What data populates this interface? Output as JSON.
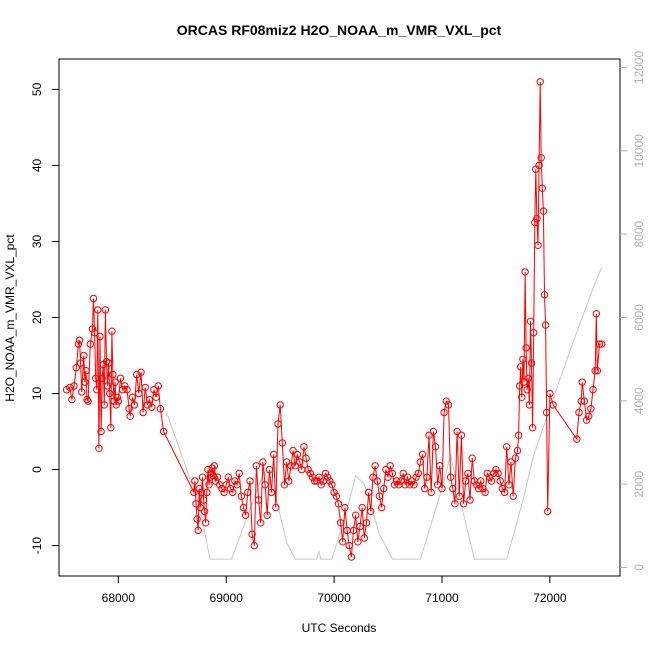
{
  "chart_data": {
    "type": "scatter",
    "title": "ORCAS RF08miz2 H2O_NOAA_m_VMR_VXL_pct",
    "xlabel": "UTC Seconds",
    "ylabel": "H2O_NOAA_m_VMR_VXL_pct",
    "xlim": [
      67450,
      72650
    ],
    "ylim": [
      -14,
      54
    ],
    "x_ticks": [
      68000,
      69000,
      70000,
      71000,
      72000
    ],
    "y_ticks": [
      -10,
      0,
      10,
      20,
      30,
      40,
      50
    ],
    "y2lim": [
      -205,
      12205
    ],
    "y2_ticks": [
      0,
      2000,
      4000,
      6000,
      8000,
      10000,
      12000
    ],
    "colors": {
      "series": "#ff0000",
      "altitude": "#c8c8c8"
    },
    "series": [
      {
        "style": "points+line",
        "color": "#ff0000",
        "points": [
          [
            67520,
            10.5
          ],
          [
            67550,
            10.8
          ],
          [
            67570,
            9.2
          ],
          [
            67590,
            11.0
          ],
          [
            67610,
            13.4
          ],
          [
            67630,
            16.5
          ],
          [
            67640,
            17.0
          ],
          [
            67650,
            14.0
          ],
          [
            67660,
            10.2
          ],
          [
            67680,
            15.0
          ],
          [
            67690,
            11.5
          ],
          [
            67700,
            13.0
          ],
          [
            67710,
            9.2
          ],
          [
            67720,
            9.0
          ],
          [
            67740,
            16.5
          ],
          [
            67760,
            18.5
          ],
          [
            67770,
            22.5
          ],
          [
            67780,
            18.0
          ],
          [
            67790,
            12.0
          ],
          [
            67800,
            10.5
          ],
          [
            67810,
            21.0
          ],
          [
            67820,
            2.8
          ],
          [
            67830,
            17.5
          ],
          [
            67840,
            5.0
          ],
          [
            67850,
            12.0
          ],
          [
            67860,
            13.8
          ],
          [
            67870,
            8.5
          ],
          [
            67880,
            21.0
          ],
          [
            67890,
            14.2
          ],
          [
            67900,
            11.0
          ],
          [
            67910,
            14.0
          ],
          [
            67920,
            10.0
          ],
          [
            67930,
            5.5
          ],
          [
            67940,
            18.2
          ],
          [
            67950,
            12.5
          ],
          [
            67960,
            9.0
          ],
          [
            67970,
            11.5
          ],
          [
            67980,
            8.5
          ],
          [
            67990,
            9.5
          ],
          [
            68000,
            9.0
          ],
          [
            68020,
            12.0
          ],
          [
            68040,
            10.5
          ],
          [
            68060,
            11.0
          ],
          [
            68080,
            10.5
          ],
          [
            68100,
            8.0
          ],
          [
            68110,
            7.0
          ],
          [
            68130,
            9.5
          ],
          [
            68150,
            8.5
          ],
          [
            68170,
            12.5
          ],
          [
            68190,
            10.0
          ],
          [
            68210,
            12.8
          ],
          [
            68230,
            7.5
          ],
          [
            68250,
            10.8
          ],
          [
            68270,
            8.5
          ],
          [
            68290,
            9.2
          ],
          [
            68310,
            8.2
          ],
          [
            68330,
            10.5
          ],
          [
            68350,
            9.5
          ],
          [
            68370,
            11.0
          ],
          [
            68390,
            8.0
          ],
          [
            68420,
            5.0
          ],
          [
            68700,
            -3.0
          ],
          [
            68710,
            -1.5
          ],
          [
            68720,
            -4.5
          ],
          [
            68730,
            -6.5
          ],
          [
            68740,
            -8.0
          ],
          [
            68750,
            -2.5
          ],
          [
            68760,
            -5.0
          ],
          [
            68770,
            -3.0
          ],
          [
            68780,
            -1.0
          ],
          [
            68790,
            -4.0
          ],
          [
            68800,
            -5.5
          ],
          [
            68810,
            -7.0
          ],
          [
            68820,
            -3.0
          ],
          [
            68830,
            0.0
          ],
          [
            68840,
            -2.0
          ],
          [
            68850,
            -1.0
          ],
          [
            68860,
            -0.5
          ],
          [
            68870,
            0.2
          ],
          [
            68880,
            -0.8
          ],
          [
            68890,
            0.5
          ],
          [
            68900,
            -1.5
          ],
          [
            68920,
            -1.0
          ],
          [
            68940,
            -2.0
          ],
          [
            68960,
            -2.5
          ],
          [
            68980,
            -3.0
          ],
          [
            69000,
            -2.0
          ],
          [
            69020,
            -1.0
          ],
          [
            69040,
            -2.5
          ],
          [
            69060,
            -3.0
          ],
          [
            69080,
            -1.5
          ],
          [
            69100,
            -2.0
          ],
          [
            69120,
            -0.5
          ],
          [
            69140,
            -3.5
          ],
          [
            69160,
            -5.0
          ],
          [
            69180,
            -6.0
          ],
          [
            69200,
            -3.0
          ],
          [
            69220,
            -1.5
          ],
          [
            69240,
            -8.5
          ],
          [
            69260,
            -10.0
          ],
          [
            69280,
            0.5
          ],
          [
            69300,
            -4.0
          ],
          [
            69320,
            -7.0
          ],
          [
            69340,
            1.0
          ],
          [
            69360,
            -2.0
          ],
          [
            69380,
            -6.0
          ],
          [
            69400,
            0.0
          ],
          [
            69420,
            -3.0
          ],
          [
            69440,
            2.0
          ],
          [
            69460,
            -5.0
          ],
          [
            69480,
            6.0
          ],
          [
            69500,
            8.5
          ],
          [
            69520,
            3.5
          ],
          [
            69540,
            -2.0
          ],
          [
            69560,
            1.0
          ],
          [
            69580,
            -1.5
          ],
          [
            69600,
            0.5
          ],
          [
            69620,
            2.5
          ],
          [
            69640,
            0.5
          ],
          [
            69660,
            2.0
          ],
          [
            69680,
            1.0
          ],
          [
            69700,
            0.0
          ],
          [
            69720,
            3.0
          ],
          [
            69740,
            1.5
          ],
          [
            69760,
            0.0
          ],
          [
            69780,
            -0.5
          ],
          [
            69800,
            -1.0
          ],
          [
            69820,
            -1.5
          ],
          [
            69840,
            -1.5
          ],
          [
            69860,
            -1.0
          ],
          [
            69880,
            -2.0
          ],
          [
            69900,
            -1.5
          ],
          [
            69920,
            -0.5
          ],
          [
            69940,
            -1.0
          ],
          [
            69960,
            -1.5
          ],
          [
            69980,
            -2.0
          ],
          [
            70000,
            -3.0
          ],
          [
            70020,
            -3.5
          ],
          [
            70040,
            -4.5
          ],
          [
            70060,
            -7.0
          ],
          [
            70080,
            -9.5
          ],
          [
            70100,
            -5.0
          ],
          [
            70120,
            -8.0
          ],
          [
            70140,
            -10.0
          ],
          [
            70160,
            -11.5
          ],
          [
            70180,
            -8.0
          ],
          [
            70200,
            -6.0
          ],
          [
            70220,
            -9.5
          ],
          [
            70240,
            -7.5
          ],
          [
            70260,
            -5.0
          ],
          [
            70280,
            -9.0
          ],
          [
            70300,
            -7.0
          ],
          [
            70320,
            -3.0
          ],
          [
            70340,
            -5.5
          ],
          [
            70360,
            -1.0
          ],
          [
            70380,
            0.5
          ],
          [
            70400,
            -1.5
          ],
          [
            70420,
            -3.5
          ],
          [
            70440,
            -5.0
          ],
          [
            70460,
            -2.5
          ],
          [
            70480,
            0.0
          ],
          [
            70500,
            -1.0
          ],
          [
            70520,
            0.5
          ],
          [
            70540,
            -0.5
          ],
          [
            70560,
            -2.0
          ],
          [
            70580,
            -1.5
          ],
          [
            70600,
            -2.0
          ],
          [
            70620,
            -1.5
          ],
          [
            70640,
            -0.5
          ],
          [
            70660,
            -2.0
          ],
          [
            70680,
            -1.0
          ],
          [
            70700,
            -2.0
          ],
          [
            70720,
            -1.5
          ],
          [
            70740,
            -2.0
          ],
          [
            70760,
            -1.0
          ],
          [
            70780,
            -0.5
          ],
          [
            70800,
            1.0
          ],
          [
            70820,
            2.0
          ],
          [
            70840,
            -2.5
          ],
          [
            70860,
            -1.0
          ],
          [
            70880,
            4.5
          ],
          [
            70900,
            -3.0
          ],
          [
            70920,
            5.0
          ],
          [
            70940,
            3.0
          ],
          [
            70960,
            -2.0
          ],
          [
            70980,
            0.5
          ],
          [
            71000,
            -2.5
          ],
          [
            71020,
            7.5
          ],
          [
            71040,
            9.0
          ],
          [
            71060,
            8.5
          ],
          [
            71080,
            -1.0
          ],
          [
            71100,
            -2.5
          ],
          [
            71120,
            -4.5
          ],
          [
            71140,
            5.0
          ],
          [
            71160,
            -3.5
          ],
          [
            71180,
            4.5
          ],
          [
            71200,
            -4.5
          ],
          [
            71220,
            -1.5
          ],
          [
            71240,
            -0.5
          ],
          [
            71260,
            -4.0
          ],
          [
            71280,
            1.5
          ],
          [
            71300,
            -1.5
          ],
          [
            71320,
            -2.0
          ],
          [
            71340,
            -2.5
          ],
          [
            71360,
            -1.5
          ],
          [
            71380,
            -2.5
          ],
          [
            71400,
            -3.0
          ],
          [
            71420,
            -0.5
          ],
          [
            71440,
            -1.0
          ],
          [
            71460,
            -1.5
          ],
          [
            71480,
            -0.5
          ],
          [
            71500,
            0.0
          ],
          [
            71520,
            -0.5
          ],
          [
            71540,
            -1.5
          ],
          [
            71560,
            -2.5
          ],
          [
            71580,
            -3.0
          ],
          [
            71600,
            3.0
          ],
          [
            71620,
            -2.0
          ],
          [
            71640,
            1.0
          ],
          [
            71660,
            -3.5
          ],
          [
            71680,
            1.5
          ],
          [
            71700,
            2.5
          ],
          [
            71710,
            4.5
          ],
          [
            71720,
            11.0
          ],
          [
            71730,
            13.5
          ],
          [
            71740,
            9.5
          ],
          [
            71750,
            14.5
          ],
          [
            71760,
            11.5
          ],
          [
            71770,
            26.0
          ],
          [
            71780,
            16.0
          ],
          [
            71790,
            10.5
          ],
          [
            71800,
            12.0
          ],
          [
            71810,
            8.5
          ],
          [
            71820,
            19.5
          ],
          [
            71830,
            14.0
          ],
          [
            71840,
            5.5
          ],
          [
            71850,
            18.0
          ],
          [
            71860,
            32.5
          ],
          [
            71870,
            39.5
          ],
          [
            71880,
            33.0
          ],
          [
            71890,
            29.5
          ],
          [
            71900,
            40.0
          ],
          [
            71910,
            51.0
          ],
          [
            71920,
            41.0
          ],
          [
            71930,
            37.0
          ],
          [
            71940,
            34.0
          ],
          [
            71950,
            23.0
          ],
          [
            71960,
            19.0
          ],
          [
            71970,
            7.5
          ],
          [
            71980,
            -5.5
          ],
          [
            72000,
            10.0
          ],
          [
            72030,
            8.5
          ],
          [
            72250,
            4.0
          ],
          [
            72270,
            7.5
          ],
          [
            72290,
            9.0
          ],
          [
            72300,
            11.5
          ],
          [
            72320,
            9.0
          ],
          [
            72340,
            6.5
          ],
          [
            72360,
            7.0
          ],
          [
            72380,
            8.0
          ],
          [
            72400,
            10.5
          ],
          [
            72420,
            13.0
          ],
          [
            72430,
            20.5
          ],
          [
            72440,
            13.0
          ],
          [
            72460,
            16.5
          ],
          [
            72480,
            16.5
          ]
        ]
      },
      {
        "style": "line",
        "color": "#c8c8c8",
        "axis": "right",
        "points": [
          [
            68450,
            3700
          ],
          [
            68600,
            2600
          ],
          [
            68750,
            1500
          ],
          [
            68850,
            200
          ],
          [
            69050,
            200
          ],
          [
            69200,
            1250
          ],
          [
            69350,
            2300
          ],
          [
            69460,
            1700
          ],
          [
            69560,
            600
          ],
          [
            69640,
            200
          ],
          [
            69840,
            200
          ],
          [
            69860,
            400
          ],
          [
            69875,
            200
          ],
          [
            69980,
            200
          ],
          [
            70050,
            800
          ],
          [
            70150,
            1700
          ],
          [
            70200,
            2200
          ],
          [
            70280,
            2000
          ],
          [
            70420,
            800
          ],
          [
            70540,
            200
          ],
          [
            70800,
            200
          ],
          [
            71000,
            1900
          ],
          [
            71080,
            2700
          ],
          [
            71180,
            1500
          ],
          [
            71300,
            200
          ],
          [
            71600,
            200
          ],
          [
            71750,
            1600
          ],
          [
            71850,
            2700
          ],
          [
            72050,
            4200
          ],
          [
            72200,
            5300
          ],
          [
            72300,
            6000
          ],
          [
            72400,
            6700
          ],
          [
            72480,
            7200
          ]
        ]
      }
    ]
  }
}
